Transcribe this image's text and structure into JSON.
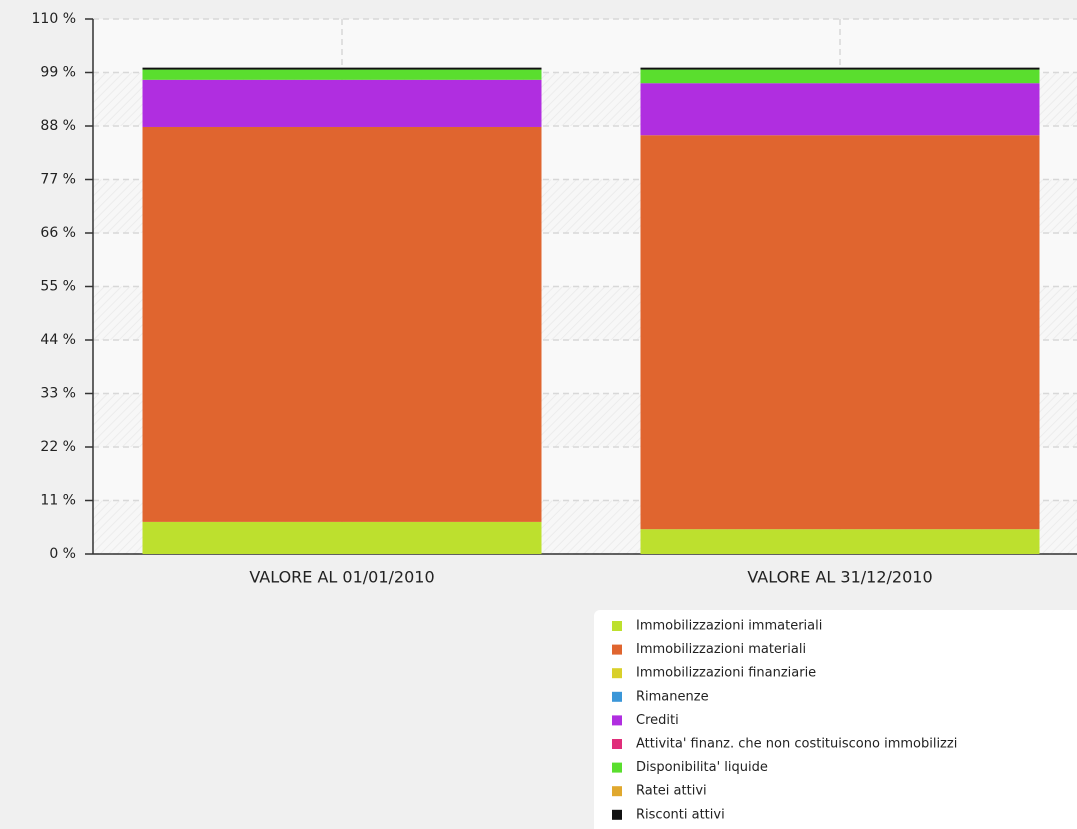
{
  "chart_data": {
    "type": "stacked-bar",
    "categories": [
      "VALORE AL 01/01/2010",
      "VALORE AL 31/12/2010"
    ],
    "series": [
      {
        "name": "Immobilizzazioni immateriali",
        "color": "#bde02e",
        "values": [
          6.6,
          5.1
        ]
      },
      {
        "name": "Immobilizzazioni materiali",
        "color": "#e0652f",
        "values": [
          81.2,
          81.0
        ]
      },
      {
        "name": "Immobilizzazioni finanziarie",
        "color": "#d9d02a",
        "values": [
          0,
          0
        ]
      },
      {
        "name": "Rimanenze",
        "color": "#3a96d8",
        "values": [
          0,
          0
        ]
      },
      {
        "name": "Crediti",
        "color": "#b02ee0",
        "values": [
          9.7,
          10.7
        ]
      },
      {
        "name": "Attivita' finanz. che non costituiscono immobilizzi",
        "color": "#e02e7a",
        "values": [
          0,
          0
        ]
      },
      {
        "name": "Disponibilita' liquide",
        "color": "#5ade2e",
        "values": [
          2.1,
          2.8
        ]
      },
      {
        "name": "Ratei attivi",
        "color": "#e0a82e",
        "values": [
          0,
          0
        ]
      },
      {
        "name": "Risconti attivi",
        "color": "#111111",
        "values": [
          0.4,
          0.4
        ]
      }
    ],
    "ylim": [
      0,
      110
    ],
    "yticks": [
      {
        "value": 0,
        "label": "0 %"
      },
      {
        "value": 11,
        "label": "11 %"
      },
      {
        "value": 22,
        "label": "22 %"
      },
      {
        "value": 33,
        "label": "33 %"
      },
      {
        "value": 44,
        "label": "44 %"
      },
      {
        "value": 55,
        "label": "55 %"
      },
      {
        "value": 66,
        "label": "66 %"
      },
      {
        "value": 77,
        "label": "77 %"
      },
      {
        "value": 88,
        "label": "88 %"
      },
      {
        "value": 99,
        "label": "99 %"
      },
      {
        "value": 110,
        "label": "110 %"
      }
    ],
    "grid": true
  }
}
